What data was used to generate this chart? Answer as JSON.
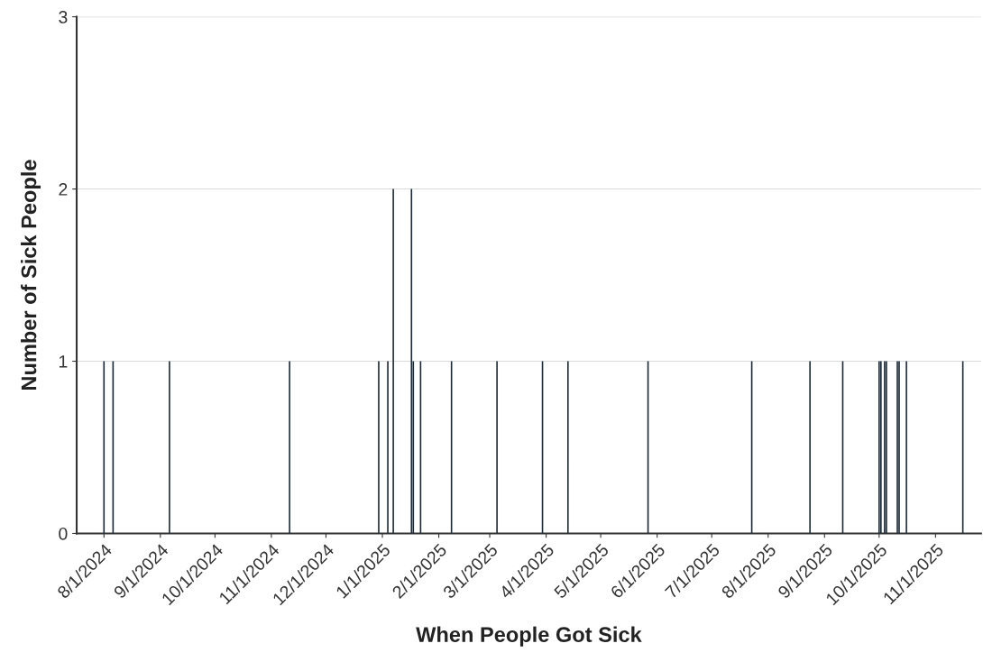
{
  "chart_data": {
    "type": "bar",
    "xlabel": "When People Got Sick",
    "ylabel": "Number of Sick People",
    "x": [
      "2024-08-01",
      "2024-08-06",
      "2024-09-06",
      "2024-11-11",
      "2024-12-30",
      "2025-01-04",
      "2025-01-07",
      "2025-01-17",
      "2025-01-18",
      "2025-01-22",
      "2025-02-08",
      "2025-03-05",
      "2025-03-30",
      "2025-04-13",
      "2025-05-27",
      "2025-07-23",
      "2025-08-24",
      "2025-09-11",
      "2025-10-01",
      "2025-10-02",
      "2025-10-04",
      "2025-10-05",
      "2025-10-11",
      "2025-10-12",
      "2025-10-16",
      "2025-11-16"
    ],
    "values": [
      1,
      1,
      1,
      1,
      1,
      1,
      2,
      2,
      1,
      1,
      1,
      1,
      1,
      1,
      1,
      1,
      1,
      1,
      1,
      1,
      1,
      1,
      1,
      1,
      1,
      1
    ],
    "color": "#1b2a38",
    "xlim": [
      "2024-07-17",
      "2025-11-26"
    ],
    "xticks": [
      {
        "value": "2024-08-01",
        "label": "8/1/2024"
      },
      {
        "value": "2024-09-01",
        "label": "9/1/2024"
      },
      {
        "value": "2024-10-01",
        "label": "10/1/2024"
      },
      {
        "value": "2024-11-01",
        "label": "11/1/2024"
      },
      {
        "value": "2024-12-01",
        "label": "12/1/2024"
      },
      {
        "value": "2025-01-01",
        "label": "1/1/2025"
      },
      {
        "value": "2025-02-01",
        "label": "2/1/2025"
      },
      {
        "value": "2025-03-01",
        "label": "3/1/2025"
      },
      {
        "value": "2025-04-01",
        "label": "4/1/2025"
      },
      {
        "value": "2025-05-01",
        "label": "5/1/2025"
      },
      {
        "value": "2025-06-01",
        "label": "6/1/2025"
      },
      {
        "value": "2025-07-01",
        "label": "7/1/2025"
      },
      {
        "value": "2025-08-01",
        "label": "8/1/2025"
      },
      {
        "value": "2025-09-01",
        "label": "9/1/2025"
      },
      {
        "value": "2025-10-01",
        "label": "10/1/2025"
      },
      {
        "value": "2025-11-01",
        "label": "11/1/2025"
      }
    ],
    "ylim": [
      0,
      3
    ],
    "yticks": [
      0,
      1,
      2,
      3
    ],
    "grid": "y"
  }
}
